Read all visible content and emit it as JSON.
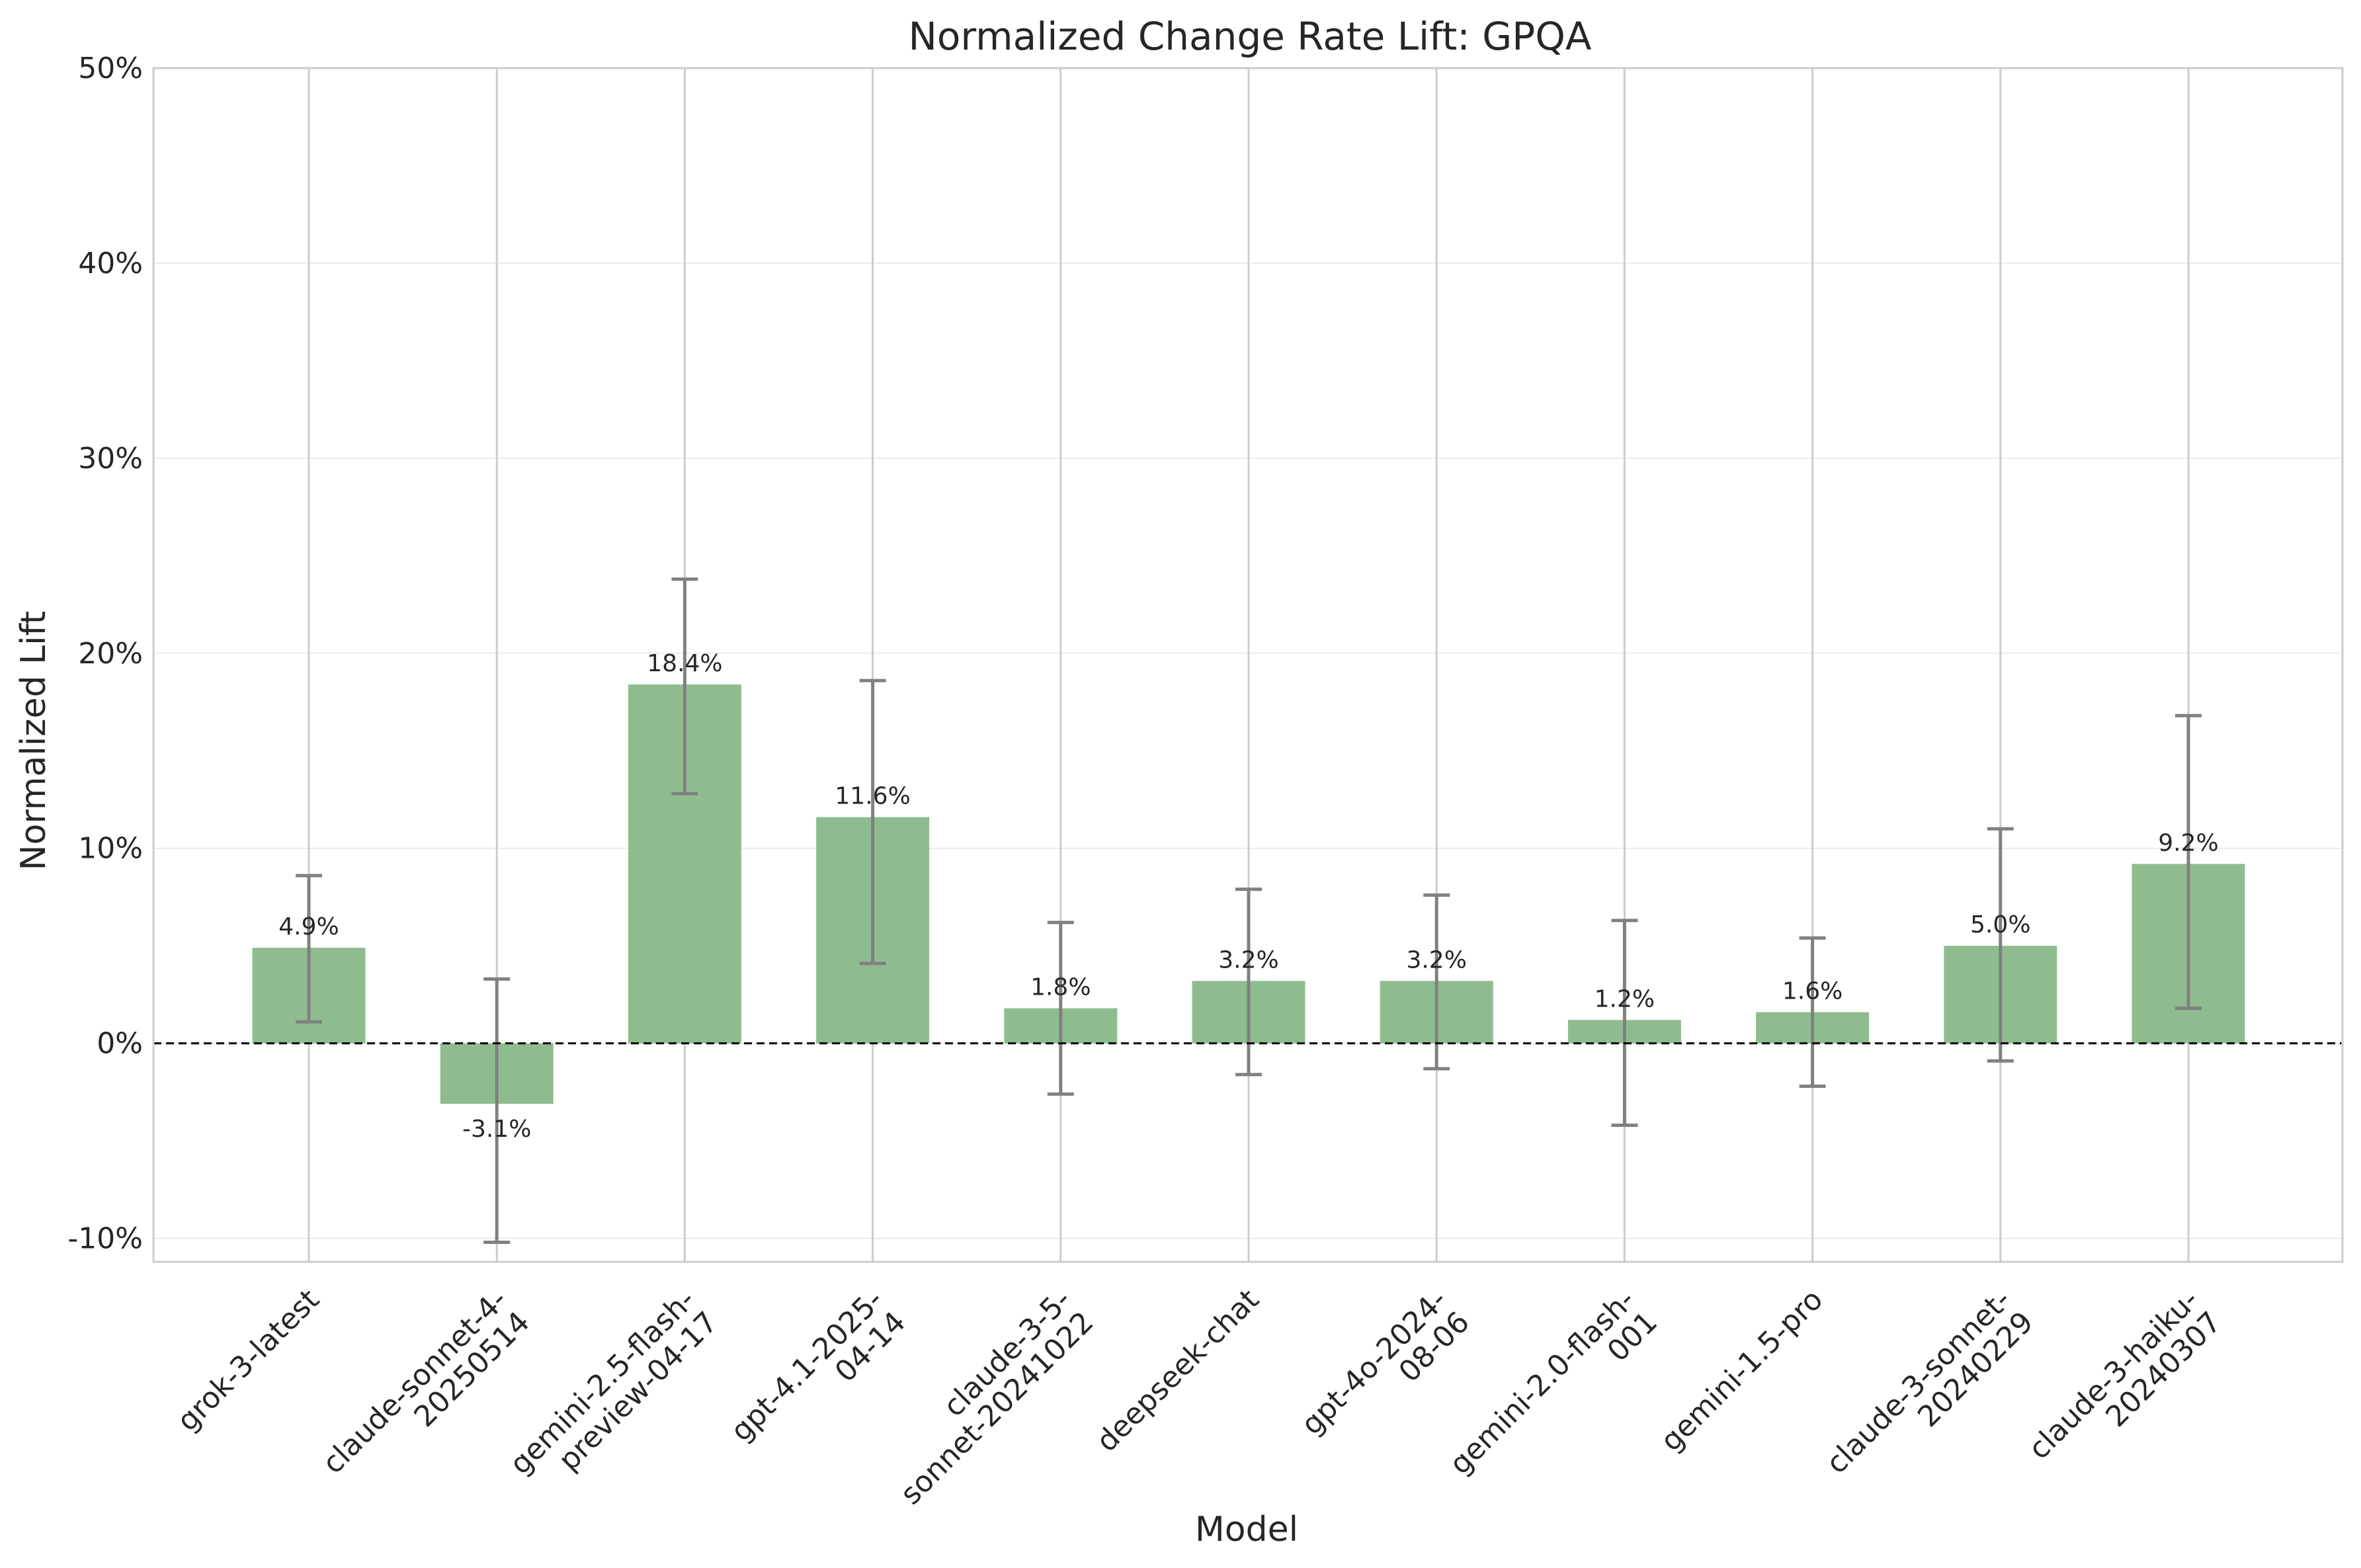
{
  "chart_data": {
    "type": "bar",
    "title": "Normalized Change Rate Lift: GPQA",
    "xlabel": "Model",
    "ylabel": "Normalized Lift",
    "ylim": [
      -11.2,
      50
    ],
    "yticks": [
      -10,
      0,
      10,
      20,
      30,
      40,
      50
    ],
    "ytick_labels": [
      "-10%",
      "0%",
      "10%",
      "20%",
      "30%",
      "40%",
      "50%"
    ],
    "grid": true,
    "zero_line": "dashed",
    "categories": [
      "grok-3-latest",
      "claude-sonnet-4-\n20250514",
      "gemini-2.5-flash-\npreview-04-17",
      "gpt-4.1-2025-\n04-14",
      "claude-3-5-\nsonnet-20241022",
      "deepseek-chat",
      "gpt-4o-2024-\n08-06",
      "gemini-2.0-flash-\n001",
      "gemini-1.5-pro",
      "claude-3-sonnet-\n20240229",
      "claude-3-haiku-\n20240307"
    ],
    "values": [
      4.9,
      -3.1,
      18.4,
      11.6,
      1.8,
      3.2,
      3.2,
      1.2,
      1.6,
      5.0,
      9.2
    ],
    "value_labels": [
      "4.9%",
      "-3.1%",
      "18.4%",
      "11.6%",
      "1.8%",
      "3.2%",
      "3.2%",
      "1.2%",
      "1.6%",
      "5.0%",
      "9.2%"
    ],
    "error_low": [
      1.1,
      -10.2,
      12.8,
      4.1,
      -2.6,
      -1.6,
      -1.3,
      -4.2,
      -2.2,
      -0.9,
      1.8
    ],
    "error_high": [
      8.6,
      3.3,
      23.8,
      18.6,
      6.2,
      7.9,
      7.6,
      6.3,
      5.4,
      11.0,
      16.8
    ],
    "colors": {
      "bar": "#8fbc8f",
      "errorbar": "#808080",
      "grid": "#cccccc",
      "grid_minor": "#ebebeb",
      "frame": "#cccccc",
      "zero_line": "#000000",
      "text": "#262626"
    }
  }
}
